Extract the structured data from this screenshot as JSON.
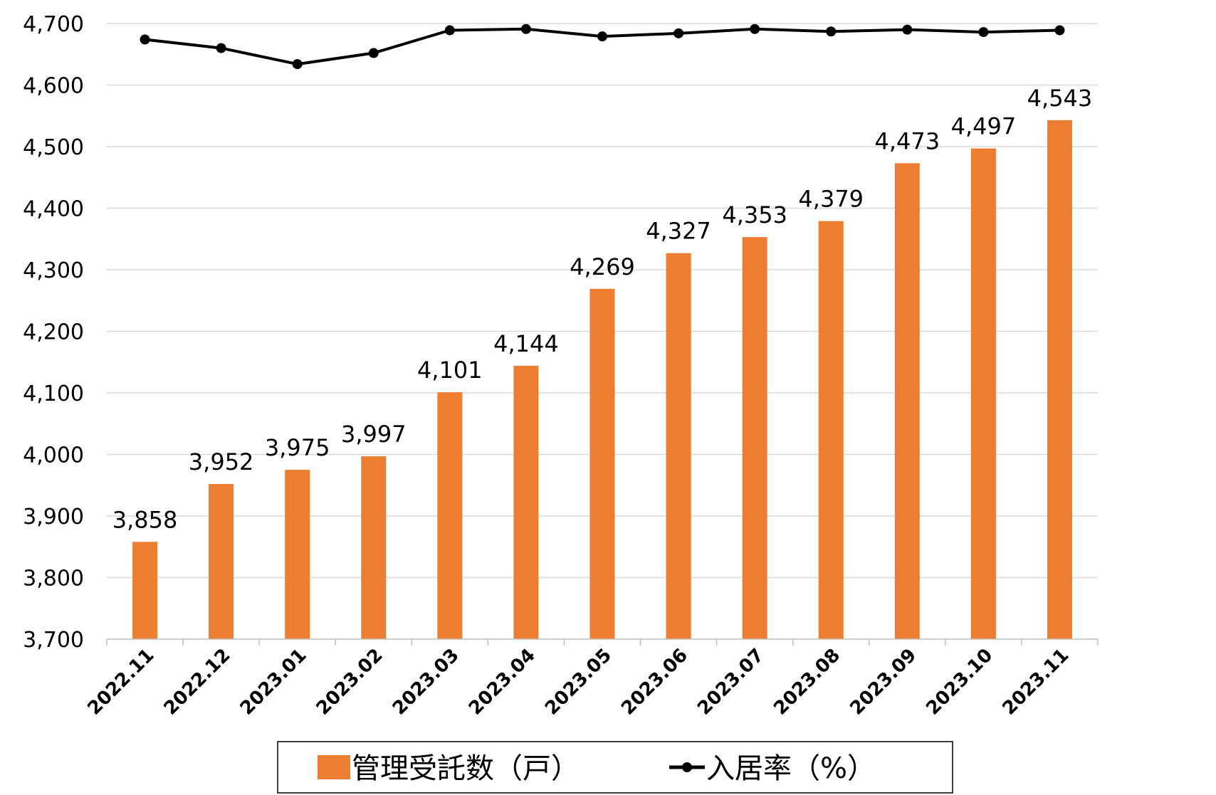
{
  "chart_data": {
    "type": "bar",
    "categories": [
      "2022.11",
      "2022.12",
      "2023.01",
      "2023.02",
      "2023.03",
      "2023.04",
      "2023.05",
      "2023.06",
      "2023.07",
      "2023.08",
      "2023.09",
      "2023.10",
      "2023.11"
    ],
    "series": [
      {
        "name": "管理受託数（戸）",
        "type": "bar",
        "color": "#ED7D31",
        "values": [
          3858,
          3952,
          3975,
          3997,
          4101,
          4144,
          4269,
          4327,
          4353,
          4379,
          4473,
          4497,
          4543
        ],
        "labels": [
          "3,858",
          "3,952",
          "3,975",
          "3,997",
          "4,101",
          "4,144",
          "4,269",
          "4,327",
          "4,353",
          "4,379",
          "4,473",
          "4,497",
          "4,543"
        ]
      },
      {
        "name": "入居率（%）",
        "type": "line",
        "color": "#000000",
        "values": [
          4674,
          4660,
          4634,
          4652,
          4689,
          4691,
          4679,
          4684,
          4691,
          4687,
          4690,
          4686,
          4689
        ]
      }
    ],
    "ylim": [
      3700,
      4700
    ],
    "yticks": [
      3700,
      3800,
      3900,
      4000,
      4100,
      4200,
      4300,
      4400,
      4500,
      4600,
      4700
    ],
    "ytick_labels": [
      "3,700",
      "3,800",
      "3,900",
      "4,000",
      "4,100",
      "4,200",
      "4,300",
      "4,400",
      "4,500",
      "4,600",
      "4,700"
    ],
    "grid": true,
    "legend_position": "bottom"
  }
}
